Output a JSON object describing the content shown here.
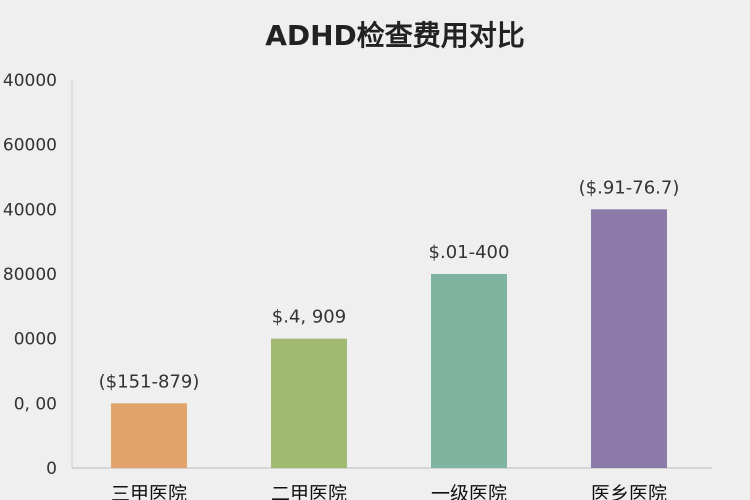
{
  "chart_data": {
    "type": "bar",
    "title": "ADHD检查费用对比",
    "categories": [
      "三甲医院",
      "二甲医院",
      "一级医院",
      "医乡医院"
    ],
    "values": [
      1,
      2,
      3,
      4
    ],
    "bar_labels": [
      "($151-879)",
      "$.4, 909",
      "$.01-400",
      "($.91-76.7)"
    ],
    "colors": [
      "#e2a36a",
      "#a1ba72",
      "#7fb5a0",
      "#8c7ba9"
    ],
    "yticks": [
      "0",
      "0, 00",
      "0000",
      "80000",
      "40000",
      "60000",
      "40000"
    ],
    "ylim": [
      0,
      6
    ],
    "xlabel": "",
    "ylabel": "",
    "grid": false
  }
}
